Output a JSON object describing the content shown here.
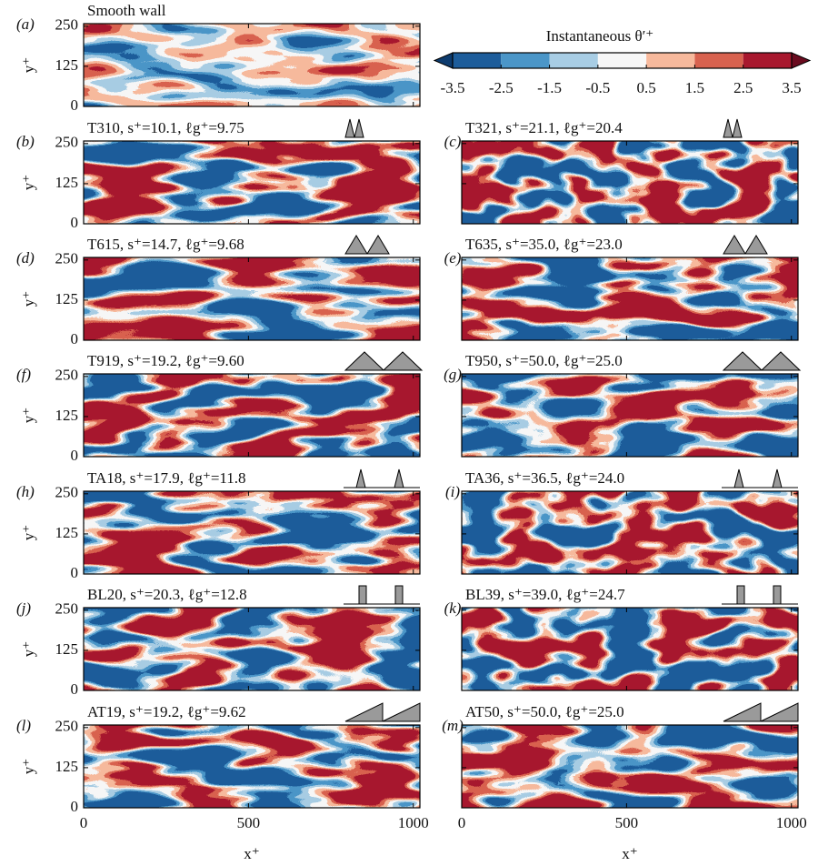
{
  "colorbar": {
    "title": "Instantaneous θ′⁺",
    "ticks": [
      -3.5,
      -2.5,
      -1.5,
      -0.5,
      0.5,
      1.5,
      2.5,
      3.5
    ],
    "colors": [
      "#1d5d9b",
      "#4b96c8",
      "#a8cde4",
      "#f7f7f7",
      "#f7b99c",
      "#d8624f",
      "#a8182e"
    ],
    "under_color": "#0d3b6e",
    "over_color": "#6a0b1f"
  },
  "xlabel": "x⁺",
  "ylabel": "y⁺",
  "xlim": [
    0,
    1020
  ],
  "ylim": [
    0,
    258
  ],
  "xticks": [
    0,
    500,
    1000
  ],
  "yticks": [
    0,
    125,
    250
  ],
  "panels": [
    {
      "label": "(a)",
      "title": "Smooth wall"
    },
    {
      "label": "(b)",
      "title": "T310, s⁺=10.1, ℓg⁺=9.75"
    },
    {
      "label": "(c)",
      "title": "T321, s⁺=21.1, ℓg⁺=20.4"
    },
    {
      "label": "(d)",
      "title": "T615, s⁺=14.7, ℓg⁺=9.68"
    },
    {
      "label": "(e)",
      "title": "T635, s⁺=35.0, ℓg⁺=23.0"
    },
    {
      "label": "(f)",
      "title": "T919, s⁺=19.2, ℓg⁺=9.60"
    },
    {
      "label": "(g)",
      "title": "T950, s⁺=50.0, ℓg⁺=25.0"
    },
    {
      "label": "(h)",
      "title": "TA18, s⁺=17.9, ℓg⁺=11.8"
    },
    {
      "label": "(i)",
      "title": "TA36, s⁺=36.5, ℓg⁺=24.0"
    },
    {
      "label": "(j)",
      "title": "BL20, s⁺=20.3, ℓg⁺=12.8"
    },
    {
      "label": "(k)",
      "title": "BL39, s⁺=39.0, ℓg⁺=24.7"
    },
    {
      "label": "(l)",
      "title": "AT19, s⁺=19.2, ℓg⁺=9.62"
    },
    {
      "label": "(m)",
      "title": "AT50, s⁺=50.0, ℓg⁺=25.0"
    }
  ]
}
